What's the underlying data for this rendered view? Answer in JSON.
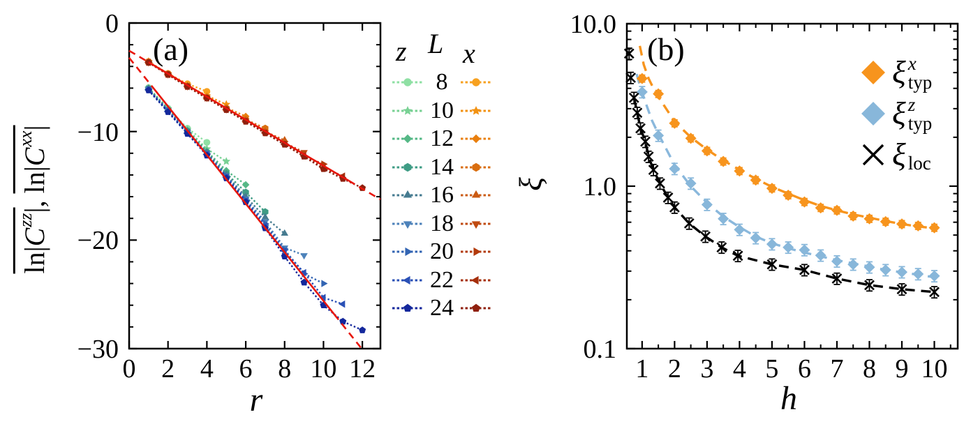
{
  "figure": {
    "background": "#ffffff",
    "text_color": "#000000"
  },
  "chart_data": [
    {
      "type": "line",
      "panel_tag": "(a)",
      "xlabel": "r",
      "ylabel": "ln|C^zz|, ln|C^xx| (both terms overlined)",
      "ylabel_parts": {
        "t1pre": "ln|",
        "t1var": "C",
        "t1sup": "zz",
        "t1post": "|",
        "sep": ", ",
        "t2pre": "ln|",
        "t2var": "C",
        "t2sup": "xx",
        "t2post": "|"
      },
      "xlim": [
        0,
        12.93
      ],
      "ylim": [
        -30,
        0
      ],
      "xticks": [
        0,
        2,
        4,
        6,
        8,
        10,
        12
      ],
      "yticks": {
        "values": [
          0,
          -10,
          -20,
          -30
        ],
        "labels": [
          "0",
          "−10",
          "−20",
          "−30"
        ]
      },
      "yminor_step": 2,
      "grid": false,
      "fit_color": "#e8160c",
      "fits": [
        {
          "name": "zz-fit",
          "slope": -2.24,
          "intercept": -3.2,
          "dash_in": [
            0,
            1.15
          ],
          "solid": [
            1.15,
            10.55
          ],
          "dash_out": [
            10.55,
            11.96
          ]
        },
        {
          "name": "xx-fit",
          "slope": -1.06,
          "intercept": -2.55,
          "dash_in": [
            0,
            1.0
          ],
          "solid": [
            1.0,
            11.3
          ],
          "dash_out": [
            11.3,
            12.93
          ]
        }
      ],
      "legend": {
        "headers": [
          "z",
          "L",
          "x"
        ],
        "L_values": [
          8,
          10,
          12,
          14,
          16,
          18,
          20,
          22,
          24
        ],
        "markers": [
          "circle",
          "star",
          "diamond",
          "hexagon",
          "triangle-up",
          "triangle-down",
          "triangle-right",
          "triangle-left",
          "pentagon"
        ],
        "z_colors": [
          "#8fe0a4",
          "#79d194",
          "#55b886",
          "#3f9c85",
          "#467b90",
          "#4d82ba",
          "#3365b3",
          "#2a50b6",
          "#14289c"
        ],
        "x_colors": [
          "#f7a120",
          "#f29111",
          "#e97f0e",
          "#d96e10",
          "#cb5b14",
          "#c04a10",
          "#b23a0c",
          "#a52e0a",
          "#8f200e"
        ]
      },
      "series": [
        {
          "family": "zz",
          "L": 8,
          "marker": "circle",
          "color": "#8fe0a4",
          "r_start": 1,
          "values": [
            -5.95,
            -7.85,
            -9.7,
            -11.0
          ]
        },
        {
          "family": "zz",
          "L": 10,
          "marker": "star",
          "color": "#79d194",
          "r_start": 1,
          "values": [
            -6.0,
            -7.9,
            -9.8,
            -11.6,
            -12.75
          ]
        },
        {
          "family": "zz",
          "L": 12,
          "marker": "diamond",
          "color": "#55b886",
          "r_start": 1,
          "values": [
            -6.0,
            -7.95,
            -9.9,
            -11.8,
            -13.6,
            -14.9
          ]
        },
        {
          "family": "zz",
          "L": 14,
          "marker": "hexagon",
          "color": "#3f9c85",
          "r_start": 1,
          "values": [
            -6.05,
            -8.0,
            -9.95,
            -11.9,
            -13.85,
            -15.6,
            -17.4
          ]
        },
        {
          "family": "zz",
          "L": 16,
          "marker": "triangle-up",
          "color": "#467b90",
          "r_start": 1,
          "values": [
            -6.05,
            -8.0,
            -10.0,
            -11.95,
            -14.0,
            -16.0,
            -17.9,
            -19.4
          ]
        },
        {
          "family": "zz",
          "L": 18,
          "marker": "triangle-down",
          "color": "#4d82ba",
          "r_start": 1,
          "values": [
            -6.1,
            -8.05,
            -10.05,
            -12.0,
            -14.05,
            -16.2,
            -18.3,
            -20.7,
            -21.4
          ]
        },
        {
          "family": "zz",
          "L": 20,
          "marker": "triangle-right",
          "color": "#3365b3",
          "r_start": 1,
          "values": [
            -6.1,
            -8.1,
            -10.1,
            -12.05,
            -14.1,
            -16.3,
            -18.5,
            -20.9,
            -23.1,
            -24.0
          ]
        },
        {
          "family": "zz",
          "L": 22,
          "marker": "triangle-left",
          "color": "#2a50b6",
          "r_start": 1,
          "values": [
            -6.15,
            -8.15,
            -10.15,
            -12.1,
            -14.2,
            -16.4,
            -18.7,
            -21.0,
            -23.0,
            -25.3,
            -25.9
          ]
        },
        {
          "family": "zz",
          "L": 24,
          "marker": "pentagon",
          "color": "#14289c",
          "r_start": 1,
          "values": [
            -6.2,
            -8.2,
            -10.2,
            -12.2,
            -14.3,
            -16.5,
            -18.9,
            -21.5,
            -23.9,
            -26.0,
            -27.5,
            -28.3
          ]
        },
        {
          "family": "xx",
          "L": 8,
          "marker": "circle",
          "color": "#f7a120",
          "r_start": 1,
          "values": [
            -3.55,
            -4.65,
            -5.6,
            -6.3
          ]
        },
        {
          "family": "xx",
          "L": 10,
          "marker": "star",
          "color": "#f29111",
          "r_start": 1,
          "values": [
            -3.55,
            -4.7,
            -5.75,
            -6.7,
            -7.5
          ]
        },
        {
          "family": "xx",
          "L": 12,
          "marker": "diamond",
          "color": "#e97f0e",
          "r_start": 1,
          "values": [
            -3.6,
            -4.7,
            -5.8,
            -6.8,
            -7.8,
            -8.6
          ]
        },
        {
          "family": "xx",
          "L": 14,
          "marker": "hexagon",
          "color": "#d96e10",
          "r_start": 1,
          "values": [
            -3.6,
            -4.7,
            -5.8,
            -6.85,
            -7.85,
            -8.9,
            -9.7
          ]
        },
        {
          "family": "xx",
          "L": 16,
          "marker": "triangle-up",
          "color": "#cb5b14",
          "r_start": 1,
          "values": [
            -3.6,
            -4.72,
            -5.82,
            -6.87,
            -7.92,
            -9.0,
            -10.0,
            -10.8
          ]
        },
        {
          "family": "xx",
          "L": 18,
          "marker": "triangle-down",
          "color": "#c04a10",
          "r_start": 1,
          "values": [
            -3.62,
            -4.73,
            -5.83,
            -6.9,
            -7.95,
            -9.02,
            -10.08,
            -11.05,
            -11.9
          ]
        },
        {
          "family": "xx",
          "L": 20,
          "marker": "triangle-right",
          "color": "#b23a0c",
          "r_start": 1,
          "values": [
            -3.62,
            -4.74,
            -5.85,
            -6.9,
            -7.95,
            -9.05,
            -10.1,
            -11.15,
            -12.25,
            -13.0
          ]
        },
        {
          "family": "xx",
          "L": 22,
          "marker": "triangle-left",
          "color": "#a52e0a",
          "r_start": 1,
          "values": [
            -3.63,
            -4.75,
            -5.85,
            -6.92,
            -7.97,
            -9.05,
            -10.12,
            -11.18,
            -12.25,
            -13.35,
            -14.1
          ]
        },
        {
          "family": "xx",
          "L": 24,
          "marker": "pentagon",
          "color": "#8f200e",
          "r_start": 1,
          "values": [
            -3.65,
            -4.76,
            -5.87,
            -6.93,
            -8.0,
            -9.08,
            -10.15,
            -11.2,
            -12.3,
            -13.45,
            -14.35,
            -15.2
          ]
        }
      ]
    },
    {
      "type": "scatter",
      "panel_tag": "(b)",
      "xlabel": "h",
      "ylabel": "ξ",
      "xlim": [
        0.53,
        10.72
      ],
      "ylim": [
        0.1,
        10
      ],
      "ylog": true,
      "xticks": [
        1,
        2,
        3,
        4,
        5,
        6,
        7,
        8,
        9,
        10
      ],
      "xminor_step": 0.5,
      "yticks": {
        "values": [
          10,
          1,
          0.1
        ],
        "labels": [
          "10.0",
          "1.0",
          "0.1"
        ]
      },
      "grid": false,
      "series": [
        {
          "name": "xi_typ_x",
          "legend": {
            "base": "ξ",
            "sup": "x",
            "sub": "typ"
          },
          "marker": "diamond",
          "color": "#f7941d",
          "err_frac": 0.05,
          "h": [
            1,
            1.5,
            2,
            2.5,
            3,
            3.5,
            4,
            4.5,
            5,
            5.5,
            6,
            6.5,
            7,
            7.5,
            8,
            8.5,
            9,
            9.5,
            10
          ],
          "values": [
            4.6,
            3.7,
            2.44,
            1.97,
            1.65,
            1.42,
            1.24,
            1.09,
            0.97,
            0.88,
            0.8,
            0.735,
            0.71,
            0.655,
            0.63,
            0.605,
            0.585,
            0.57,
            0.555
          ],
          "fit": {
            "style": "dashed",
            "color": "#f7941d",
            "h": [
              0.93,
              1.05,
              1.2,
              1.35,
              1.5,
              2,
              2.5,
              3,
              3.5,
              4,
              4.5,
              5,
              5.5,
              6,
              6.5,
              7,
              7.5,
              8,
              8.5,
              9,
              9.5,
              10
            ],
            "values": [
              7.3,
              5.6,
              4.6,
              4.0,
              3.55,
              2.5,
              2.0,
              1.68,
              1.44,
              1.26,
              1.11,
              0.99,
              0.9,
              0.82,
              0.755,
              0.71,
              0.67,
              0.64,
              0.61,
              0.585,
              0.565,
              0.55
            ]
          }
        },
        {
          "name": "xi_typ_z",
          "legend": {
            "base": "ξ",
            "sup": "z",
            "sub": "typ"
          },
          "marker": "diamond",
          "color": "#88b7da",
          "err_frac": 0.08,
          "h": [
            1,
            1.5,
            2,
            2.5,
            3,
            3.5,
            4,
            4.5,
            5,
            5.5,
            6,
            6.5,
            7,
            7.5,
            8,
            8.5,
            9,
            9.5,
            10
          ],
          "values": [
            3.8,
            2.05,
            1.28,
            1.04,
            0.77,
            0.63,
            0.54,
            0.48,
            0.44,
            0.42,
            0.405,
            0.375,
            0.345,
            0.33,
            0.317,
            0.305,
            0.296,
            0.288,
            0.28
          ],
          "fit": {
            "style": "dashed",
            "color": "#8ab8dc",
            "h": [
              0.83,
              0.95,
              1.1,
              1.3,
              1.5,
              2,
              2.5,
              3,
              3.5,
              4,
              4.5,
              5,
              5.5,
              6,
              6.5,
              7,
              7.5,
              8,
              8.5,
              9,
              9.5,
              10
            ],
            "values": [
              4.9,
              4.05,
              3.3,
              2.55,
              2.1,
              1.35,
              1.0,
              0.79,
              0.65,
              0.56,
              0.49,
              0.445,
              0.415,
              0.39,
              0.37,
              0.35,
              0.335,
              0.32,
              0.305,
              0.295,
              0.285,
              0.275
            ]
          }
        },
        {
          "name": "xi_loc",
          "legend": {
            "base": "ξ",
            "sup": "",
            "sub": "loc"
          },
          "marker": "xcross",
          "color": "#000000",
          "err_frac": 0.08,
          "h": [
            0.6,
            0.65,
            0.75,
            0.85,
            0.95,
            1.1,
            1.2,
            1.35,
            1.55,
            1.8,
            2.0,
            2.45,
            2.95,
            3.45,
            3.95,
            5.0,
            6.0,
            7.0,
            8.0,
            9.0,
            10.0
          ],
          "values": [
            6.55,
            4.65,
            3.5,
            2.83,
            2.27,
            1.88,
            1.52,
            1.26,
            1.04,
            0.85,
            0.74,
            0.59,
            0.49,
            0.42,
            0.373,
            0.33,
            0.305,
            0.27,
            0.246,
            0.232,
            0.223
          ],
          "fit": {
            "style": "dashed",
            "color": "#000000",
            "h": [
              0.75,
              0.85,
              0.95,
              1.1,
              1.2,
              1.35,
              1.55,
              1.8,
              2.0,
              2.45,
              2.95,
              3.45,
              3.95,
              5.0,
              6.0,
              7.0,
              8.0,
              9.0,
              10.0
            ],
            "values": [
              3.5,
              2.83,
              2.27,
              1.88,
              1.52,
              1.26,
              1.04,
              0.85,
              0.74,
              0.59,
              0.49,
              0.42,
              0.373,
              0.33,
              0.305,
              0.27,
              0.246,
              0.232,
              0.223
            ]
          }
        }
      ]
    }
  ]
}
